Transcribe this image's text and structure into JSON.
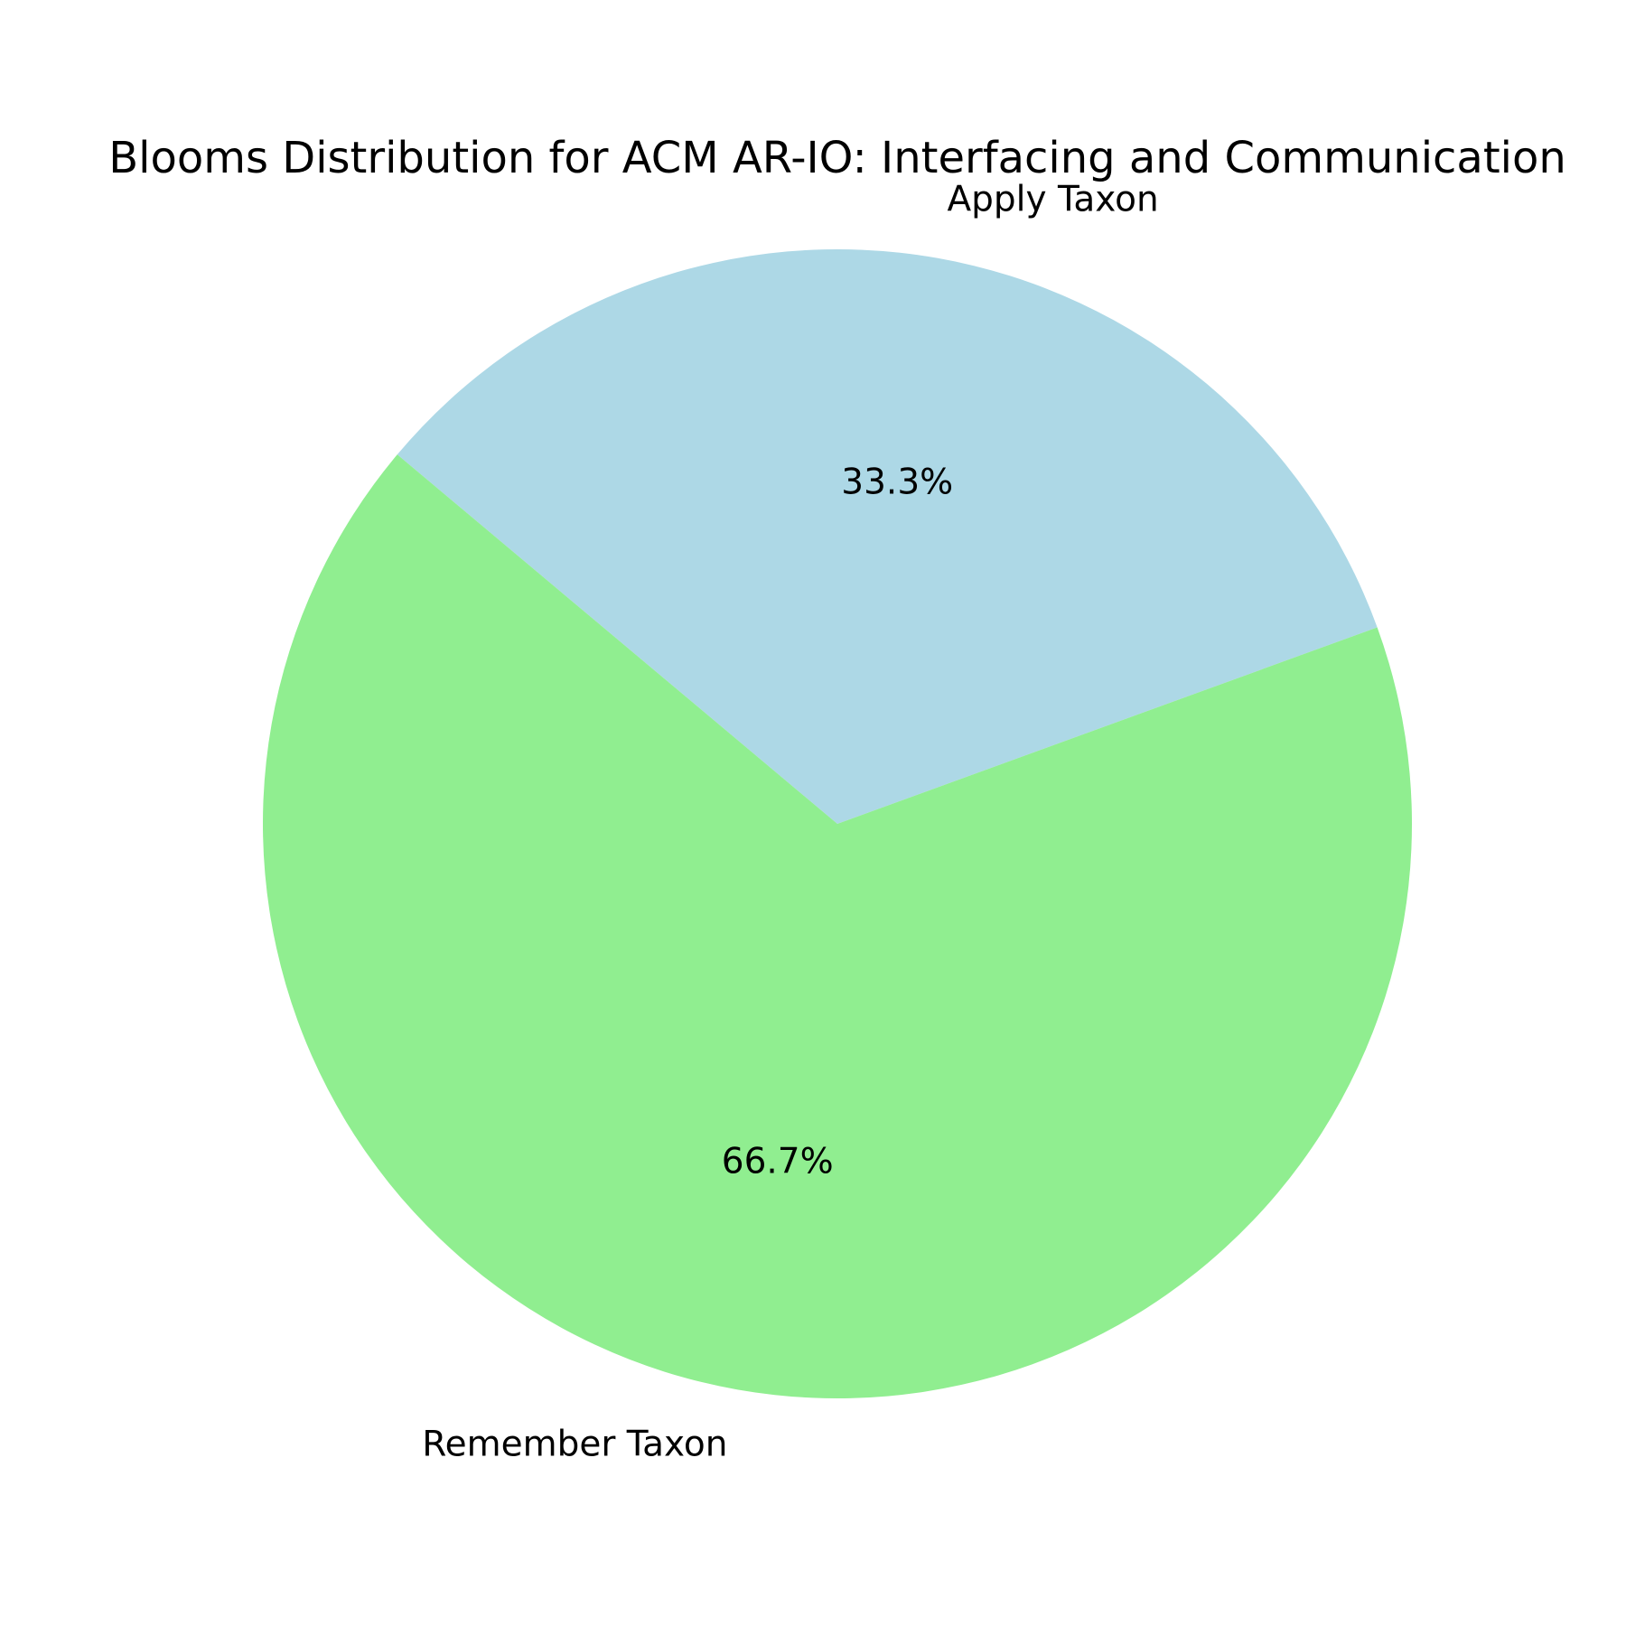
{
  "chart_data": {
    "type": "pie",
    "title": "Blooms Distribution for ACM AR-IO: Interfacing and Communication",
    "slices": [
      {
        "label": "Apply Taxon",
        "value": 1,
        "percent_label": "33.3%",
        "color": "#add8e6"
      },
      {
        "label": "Remember Taxon",
        "value": 2,
        "percent_label": "66.7%",
        "color": "#90ee90"
      }
    ],
    "start_angle_deg": 140,
    "direction": "clockwise",
    "legend": "none"
  }
}
